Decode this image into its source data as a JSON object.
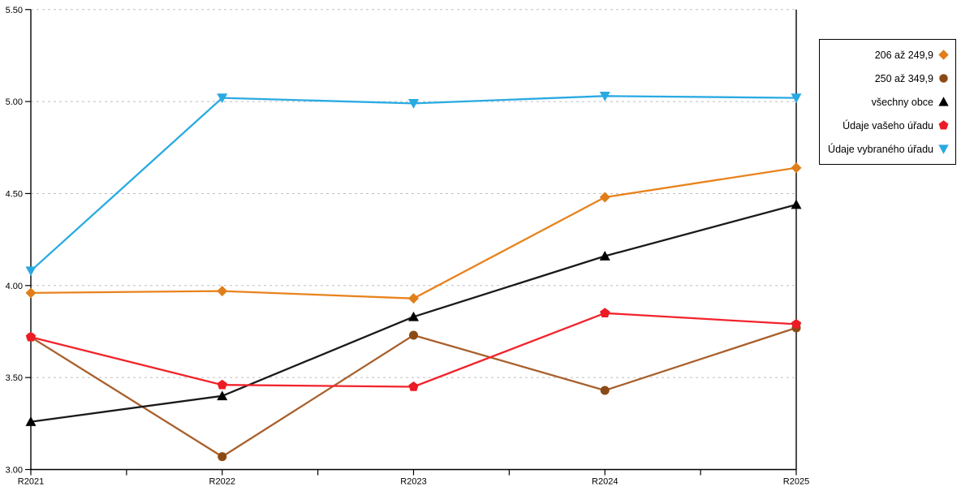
{
  "chart_data": {
    "type": "line",
    "title": "",
    "xlabel": "",
    "ylabel": "",
    "categories": [
      "R2021",
      "R2022",
      "R2023",
      "R2024",
      "R2025"
    ],
    "series": [
      {
        "name": "206 až 249,9",
        "marker": "diamond",
        "line_color": "#E8831D",
        "marker_color": "#E07E1A",
        "values": [
          3.96,
          3.97,
          3.93,
          4.48,
          4.64
        ]
      },
      {
        "name": "250 až 349,9",
        "marker": "circle",
        "line_color": "#A9602C",
        "marker_color": "#8B4A15",
        "values": [
          3.72,
          3.07,
          3.73,
          3.43,
          3.77
        ]
      },
      {
        "name": "všechny obce",
        "marker": "triangle-up",
        "line_color": "#1A1A1A",
        "marker_color": "#000000",
        "values": [
          3.26,
          3.4,
          3.83,
          4.16,
          4.44
        ]
      },
      {
        "name": "Údaje vašeho úřadu",
        "marker": "pentagon",
        "line_color": "#F2232C",
        "marker_color": "#EC1B24",
        "values": [
          3.72,
          3.46,
          3.45,
          3.85,
          3.79
        ]
      },
      {
        "name": "Údaje vybraného úřadu",
        "marker": "triangle-down",
        "line_color": "#2AAAE2",
        "marker_color": "#29A9E1",
        "values": [
          4.08,
          5.02,
          4.99,
          5.03,
          5.02
        ]
      }
    ],
    "ylim": [
      3.0,
      5.5
    ],
    "ytick_step": 0.5,
    "ytick_labels": [
      "3.00",
      "3.50",
      "4.00",
      "4.50",
      "5.00",
      "5.50"
    ],
    "grid": "horizontal-dashed",
    "grid_color": "#BFBFBF",
    "axis_color": "#000000",
    "legend_position": "outside-right"
  }
}
